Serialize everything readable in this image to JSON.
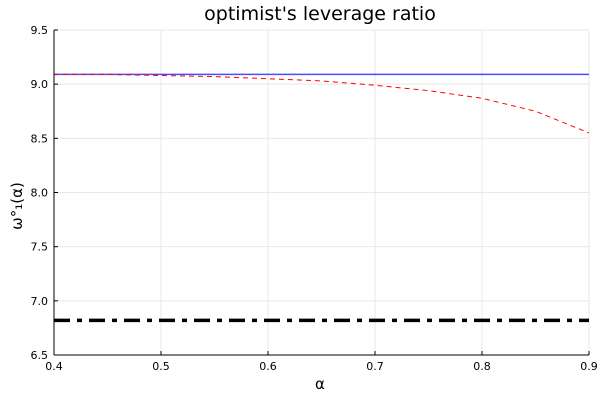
{
  "chart_data": {
    "type": "line",
    "title": "optimist's leverage ratio",
    "xlabel": "α",
    "ylabel": "ω°₁(α)",
    "xlim": [
      0.4,
      0.9
    ],
    "ylim": [
      6.5,
      9.5
    ],
    "x_ticks": [
      0.4,
      0.5,
      0.6,
      0.7,
      0.8,
      0.9
    ],
    "x_tick_labels": [
      "0.4",
      "0.5",
      "0.6",
      "0.7",
      "0.8",
      "0.9"
    ],
    "y_ticks": [
      6.5,
      7.0,
      7.5,
      8.0,
      8.5,
      9.0,
      9.5
    ],
    "y_tick_labels": [
      "6.5",
      "7.0",
      "7.5",
      "8.0",
      "8.5",
      "9.0",
      "9.5"
    ],
    "grid": true,
    "legend": "none",
    "series": [
      {
        "color": "#4b4bff",
        "style": "solid",
        "x": [
          0.4,
          0.9
        ],
        "y": [
          9.09,
          9.09
        ]
      },
      {
        "color": "#ff0000",
        "style": "dashed",
        "x": [
          0.4,
          0.45,
          0.5,
          0.55,
          0.6,
          0.65,
          0.7,
          0.75,
          0.8,
          0.85,
          0.9
        ],
        "y": [
          9.09,
          9.09,
          9.08,
          9.07,
          9.05,
          9.03,
          8.99,
          8.94,
          8.87,
          8.75,
          8.55
        ]
      },
      {
        "color": "#000000",
        "style": "dashdot",
        "x": [
          0.4,
          0.9
        ],
        "y": [
          6.82,
          6.82
        ]
      }
    ]
  }
}
